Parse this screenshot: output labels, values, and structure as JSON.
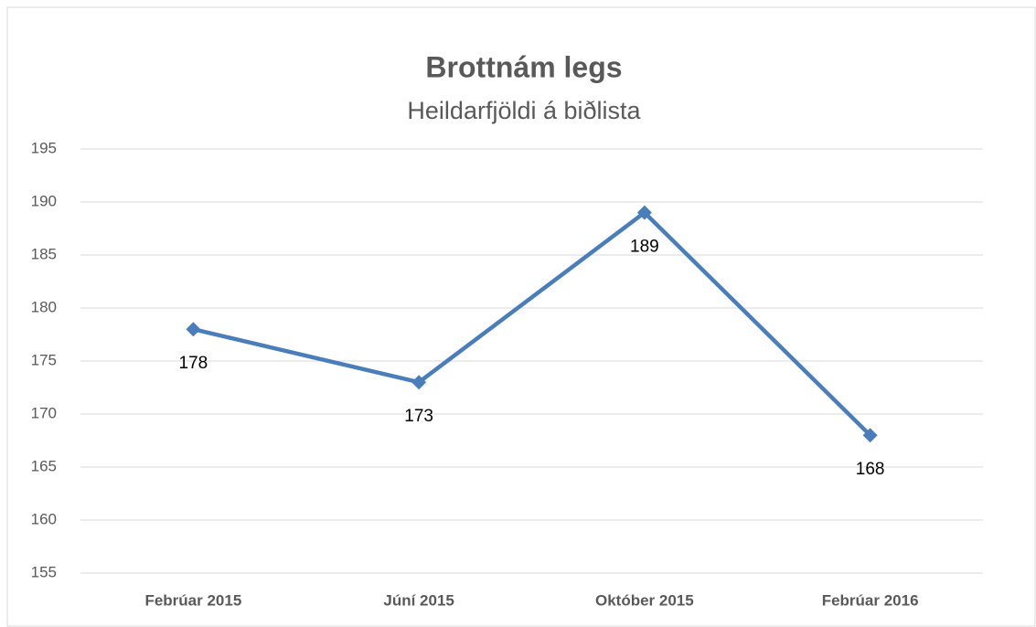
{
  "chart_data": {
    "type": "line",
    "title": "Brottnám legs",
    "subtitle": "Heildarfjöldi á biðlista",
    "categories": [
      "Febrúar 2015",
      "Júní 2015",
      "Október 2015",
      "Febrúar 2016"
    ],
    "values": [
      178,
      173,
      189,
      168
    ],
    "color": "#4a7ebb",
    "ylim": [
      155,
      195
    ],
    "yticks": [
      155,
      160,
      165,
      170,
      175,
      180,
      185,
      190,
      195
    ],
    "grid": true
  }
}
